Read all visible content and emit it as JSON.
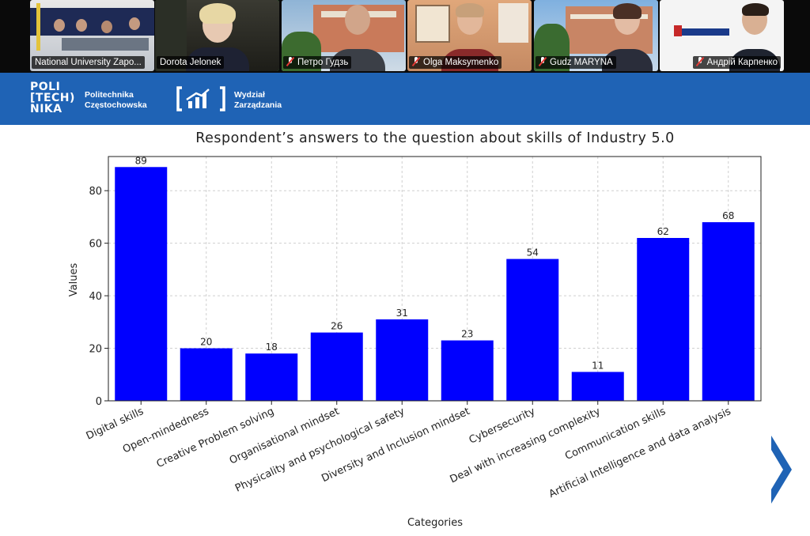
{
  "meeting": {
    "participants": [
      {
        "name": "National University Zapo...",
        "muted": false,
        "active": false
      },
      {
        "name": "Dorota Jelonek",
        "muted": false,
        "active": true
      },
      {
        "name": "Петро Гудзь",
        "muted": true,
        "active": false
      },
      {
        "name": "Olga Maksymenko",
        "muted": true,
        "active": false
      },
      {
        "name": "Gudz MARYNA",
        "muted": true,
        "active": false
      },
      {
        "name": "Андрій Карпенко",
        "muted": true,
        "active": false
      }
    ]
  },
  "slide": {
    "logo_poli_lines": [
      "POLI",
      "[TECH)",
      "NIKA"
    ],
    "logo_name_lines": [
      "Politechnika",
      "Częstochowska"
    ],
    "logo_dept_lines": [
      "Wydział",
      "Zarządzania"
    ],
    "next_icon": "chevron-right-icon"
  },
  "colors": {
    "banner": "#1f63b5",
    "bar": "#0000ff",
    "active_speaker": "#2ecc40",
    "arrow": "#1f63b5"
  },
  "chart_data": {
    "type": "bar",
    "title": "Respondent’s answers to the question about skills of Industry 5.0",
    "xlabel": "Categories",
    "ylabel": "Values",
    "categories": [
      "Digital skills",
      "Open-mindedness",
      "Creative Problem solving",
      "Organisational mindset",
      "Physicality and psychological safety",
      "Diversity and Inclusion mindset",
      "Cybersecurity",
      "Deal with increasing complexity",
      "Communication skills",
      "Artificial Intelligence and data analysis"
    ],
    "values": [
      89,
      20,
      18,
      26,
      31,
      23,
      54,
      11,
      62,
      68
    ],
    "ylim": [
      0,
      93
    ],
    "yticks": [
      0,
      20,
      40,
      60,
      80
    ],
    "grid": true,
    "data_labels": true
  }
}
